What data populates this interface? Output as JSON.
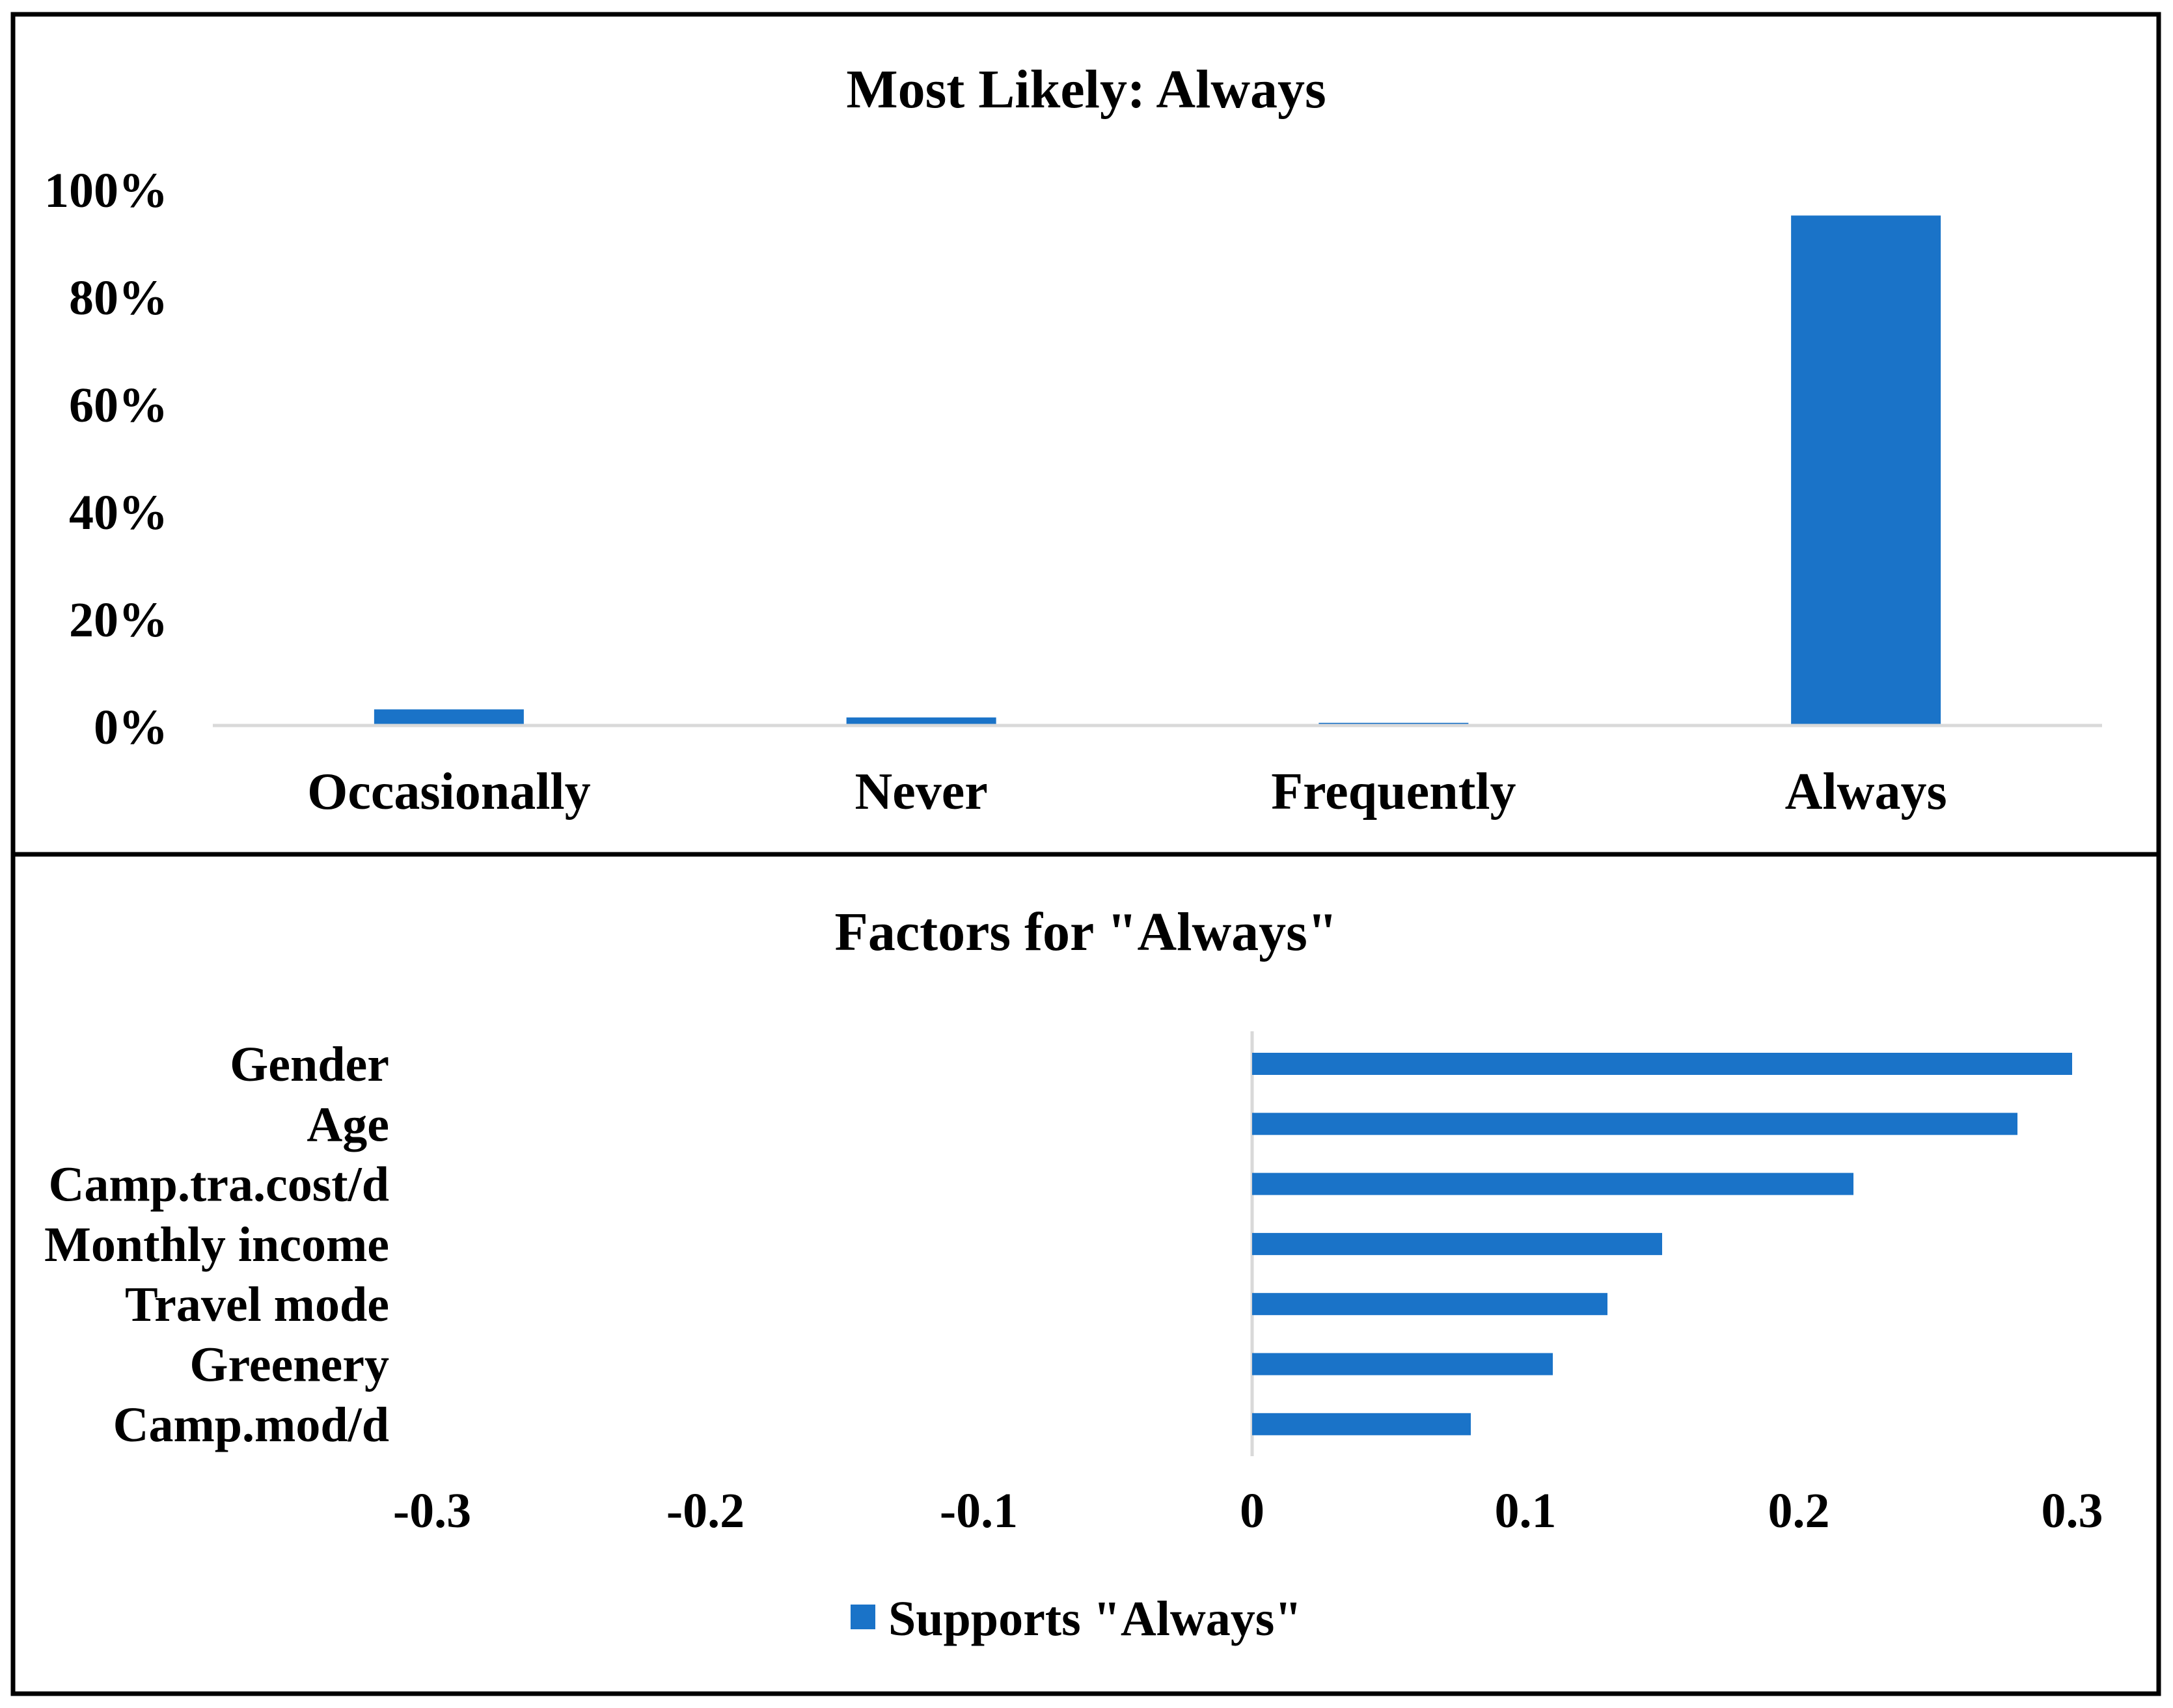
{
  "colors": {
    "bar": "#1a73c8",
    "axis": "#d9d9d9",
    "frame": "#000000",
    "text": "#000000"
  },
  "chart_data": [
    {
      "type": "bar",
      "title": "Most Likely: Always",
      "categories": [
        "Occasionally",
        "Never",
        "Frequently",
        "Always"
      ],
      "values": [
        3,
        1.5,
        0.5,
        95
      ],
      "value_unit": "%",
      "ylim": [
        0,
        100
      ],
      "yticks": [
        0,
        20,
        40,
        60,
        80,
        100
      ],
      "ytick_labels": [
        "0%",
        "20%",
        "40%",
        "60%",
        "80%",
        "100%"
      ],
      "xlabel": "",
      "ylabel": "",
      "grid": false
    },
    {
      "type": "bar",
      "orientation": "horizontal",
      "title": "Factors for \"Always\"",
      "categories": [
        "Gender",
        "Age",
        "Camp.tra.cost/d",
        "Monthly income",
        "Travel mode",
        "Greenery",
        "Camp.mod/d"
      ],
      "series": [
        {
          "name": "Supports \"Always\"",
          "values": [
            0.3,
            0.28,
            0.22,
            0.15,
            0.13,
            0.11,
            0.08
          ]
        }
      ],
      "xlim": [
        -0.3,
        0.3
      ],
      "xticks": [
        -0.3,
        -0.2,
        -0.1,
        0,
        0.1,
        0.2,
        0.3
      ],
      "xtick_labels": [
        "-0.3",
        "-0.2",
        "-0.1",
        "0",
        "0.1",
        "0.2",
        "0.3"
      ],
      "legend": "bottom-center",
      "grid": false
    }
  ]
}
